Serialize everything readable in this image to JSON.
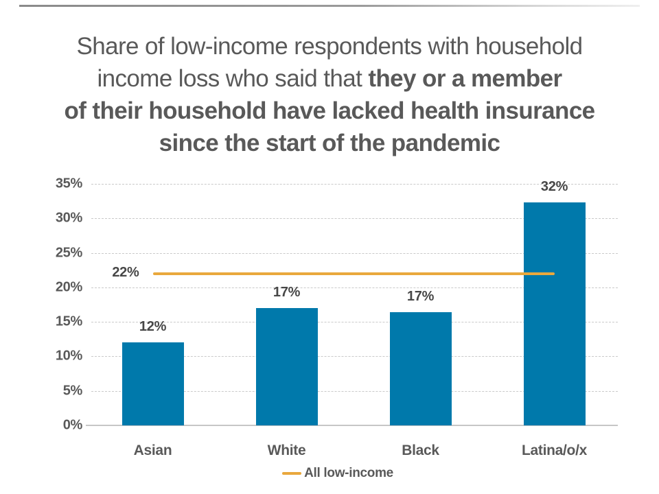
{
  "title": {
    "color": "#595959",
    "lines": [
      [
        {
          "text": "Share of low-income respondents with household",
          "bold": false
        }
      ],
      [
        {
          "text": "income loss who said that ",
          "bold": false
        },
        {
          "text": "they or a member",
          "bold": true
        }
      ],
      [
        {
          "text": "of their household have lacked health insurance",
          "bold": true
        }
      ],
      [
        {
          "text": "since the start of the pandemic",
          "bold": true
        }
      ]
    ]
  },
  "chart_data": {
    "type": "bar",
    "title": "Share of low-income respondents with household income loss who said that they or a member of their household have lacked health insurance since the start of the pandemic",
    "categories": [
      "Asian",
      "White",
      "Black",
      "Latina/o/x"
    ],
    "values": [
      12,
      17,
      17,
      32
    ],
    "value_labels": [
      "12%",
      "17%",
      "17%",
      "32%"
    ],
    "values_precise": [
      12.0,
      17.0,
      16.4,
      32.3
    ],
    "bar_color": "#0079ab",
    "text_color": "#595959",
    "xlabel": "",
    "ylabel": "",
    "ylim": [
      0,
      35
    ],
    "y_ticks": [
      0,
      5,
      10,
      15,
      20,
      25,
      30,
      35
    ],
    "y_tick_labels": [
      "0%",
      "5%",
      "10%",
      "15%",
      "20%",
      "25%",
      "30%",
      "35%"
    ],
    "grid": "horizontal-dashed",
    "reference_line": {
      "value": 22,
      "label": "22%",
      "legend_label": "All low-income",
      "color": "#e9a83d",
      "spans": "first-bar-center-to-last-bar-center"
    },
    "legend": {
      "position": "bottom-center",
      "items": [
        {
          "label": "All low-income",
          "swatch": "orange-line"
        }
      ]
    }
  }
}
